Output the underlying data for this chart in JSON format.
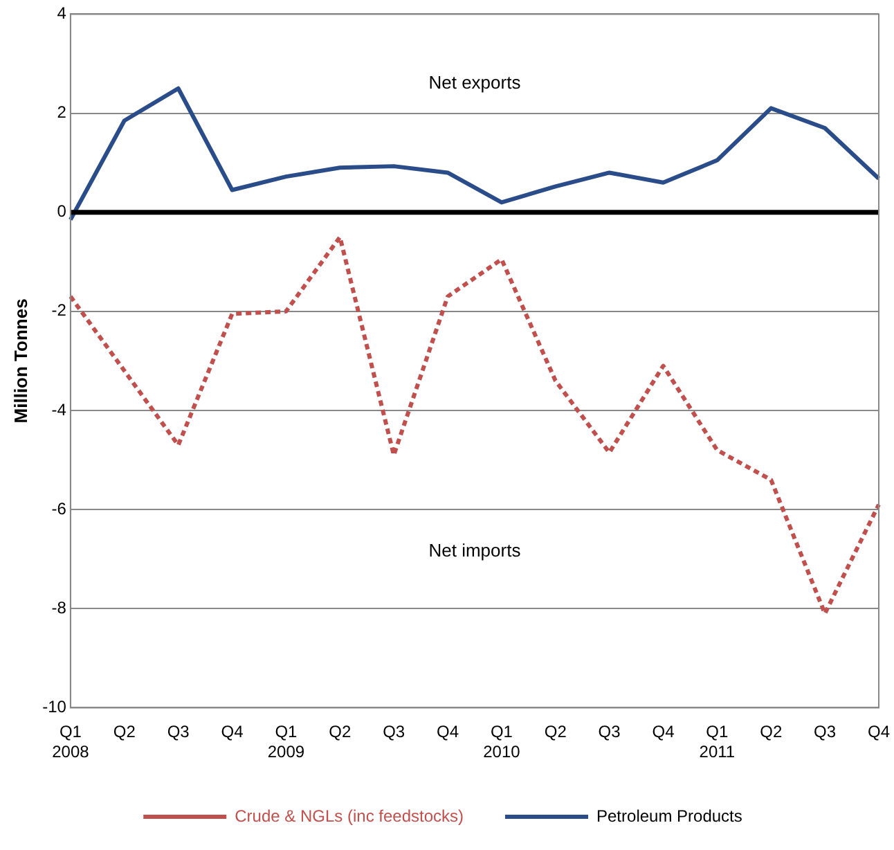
{
  "chart_data": {
    "type": "line",
    "ylabel": "Million Tonnes",
    "categories": [
      "Q1\n2008",
      "Q2",
      "Q3",
      "Q4",
      "Q1\n2009",
      "Q2",
      "Q3",
      "Q4",
      "Q1\n2010",
      "Q2",
      "Q3",
      "Q4",
      "Q1\n2011",
      "Q2",
      "Q3",
      "Q4"
    ],
    "series": [
      {
        "name": "Crude & NGLs (inc feedstocks)",
        "color": "#c0504d",
        "line_style": "dotted",
        "values": [
          -1.7,
          -3.2,
          -4.7,
          -2.05,
          -2.0,
          -0.5,
          -4.9,
          -1.7,
          -0.95,
          -3.4,
          -4.85,
          -3.1,
          -4.8,
          -5.4,
          -8.1,
          -5.9
        ]
      },
      {
        "name": "Petroleum Products",
        "color": "#2a4d8a",
        "line_style": "solid",
        "values": [
          -0.15,
          1.85,
          2.5,
          0.45,
          0.72,
          0.9,
          0.93,
          0.8,
          0.2,
          0.52,
          0.8,
          0.6,
          1.05,
          2.1,
          1.7,
          0.68
        ]
      }
    ],
    "ylim": [
      -10,
      4
    ],
    "yticks": [
      -10,
      -8,
      -6,
      -4,
      -2,
      0,
      2,
      4
    ],
    "grid": "y",
    "legend": "bottom",
    "marker": "none",
    "ref_lines": [
      {
        "axis": "y",
        "value": 0,
        "color": "#000000",
        "line_style": "solid"
      }
    ],
    "annotations": [
      "Net exports",
      "Net imports"
    ]
  }
}
